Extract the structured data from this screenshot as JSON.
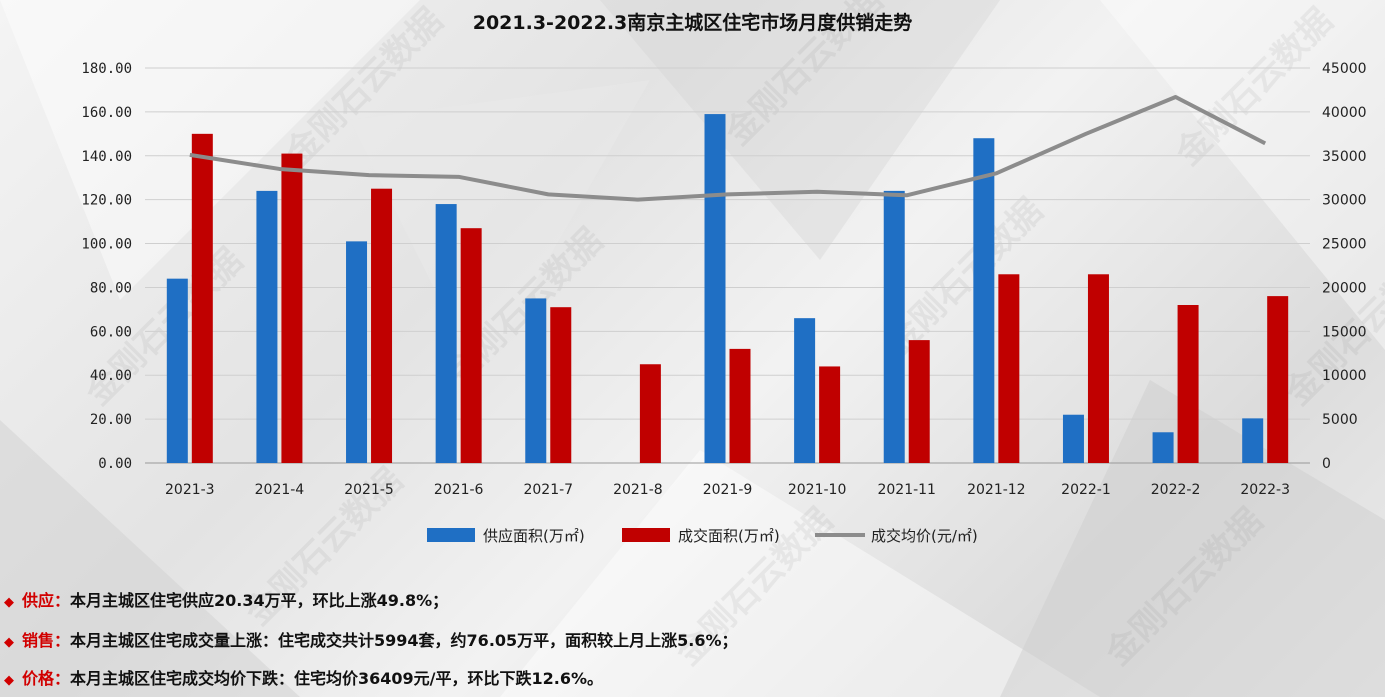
{
  "chart_data": {
    "type": "bar",
    "title": "2021.3-2022.3南京主城区住宅市场月度供销走势",
    "categories": [
      "2021-3",
      "2021-4",
      "2021-5",
      "2021-6",
      "2021-7",
      "2021-8",
      "2021-9",
      "2021-10",
      "2021-11",
      "2021-12",
      "2022-1",
      "2022-2",
      "2022-3"
    ],
    "series": [
      {
        "name": "供应面积(万㎡)",
        "type": "bar",
        "axis": "left",
        "color": "#1f6fc4",
        "values": [
          84,
          124,
          101,
          118,
          75,
          0,
          159,
          66,
          124,
          148,
          22,
          14,
          20.34
        ]
      },
      {
        "name": "成交面积(万㎡)",
        "type": "bar",
        "axis": "left",
        "color": "#c00000",
        "values": [
          150,
          141,
          125,
          107,
          71,
          45,
          52,
          44,
          56,
          86,
          86,
          72,
          76.05
        ]
      },
      {
        "name": "成交均价(元/㎡)",
        "type": "line",
        "axis": "right",
        "color": "#8c8c8c",
        "values": [
          35100,
          33500,
          32800,
          32600,
          30600,
          30000,
          30600,
          30900,
          30500,
          33000,
          37500,
          41700,
          36409
        ]
      }
    ],
    "y_left": {
      "min": 0,
      "max": 180,
      "step": 20,
      "tick_labels": [
        "0.00",
        "20.00",
        "40.00",
        "60.00",
        "80.00",
        "100.00",
        "120.00",
        "140.00",
        "160.00",
        "180.00"
      ]
    },
    "y_right": {
      "min": 0,
      "max": 45000,
      "step": 5000,
      "tick_labels": [
        "0",
        "5000",
        "10000",
        "15000",
        "20000",
        "25000",
        "30000",
        "35000",
        "40000",
        "45000"
      ]
    },
    "grid": true,
    "legend_position": "bottom"
  },
  "watermark": "金刚石云数据",
  "notes": [
    {
      "label": "供应：",
      "text": "本月主城区住宅供应20.34万平，环比上涨49.8%；"
    },
    {
      "label": "销售：",
      "text": "本月主城区住宅成交量上涨：住宅成交共计5994套，约76.05万平，面积较上月上涨5.6%；"
    },
    {
      "label": "价格：",
      "text": "本月主城区住宅成交均价下跌：住宅均价36409元/平，环比下跌12.6%。"
    }
  ],
  "colors": {
    "accent_red": "#d10000",
    "supply_blue": "#1f6fc4",
    "sales_red": "#c00000",
    "price_grey": "#8c8c8c"
  }
}
